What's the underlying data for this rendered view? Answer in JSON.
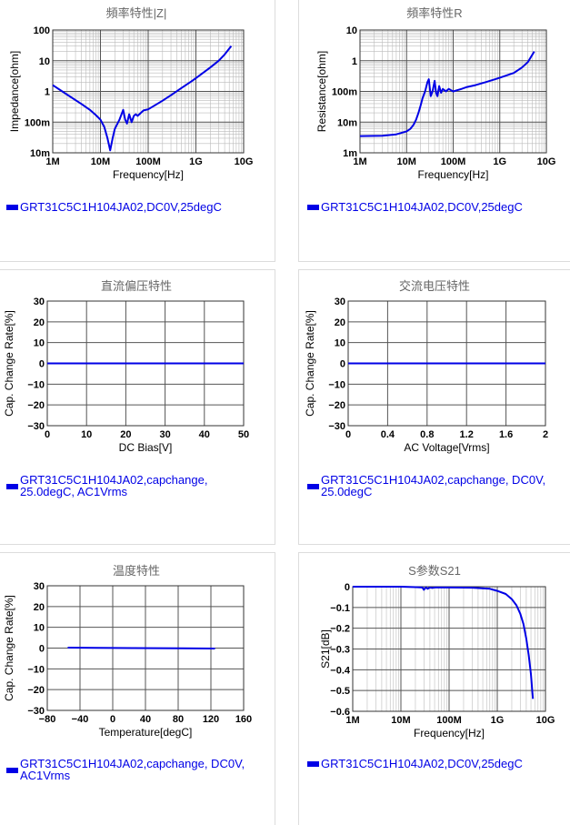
{
  "colors": {
    "line": "#0000e6",
    "grid": "#555555",
    "minor_grid": "#bbbbbb",
    "title": "#666666",
    "separator": "#dcdcdc"
  },
  "chart_data": [
    {
      "id": "impedance",
      "type": "line",
      "title": "頻率特性|Z|",
      "xlabel": "Frequency[Hz]",
      "ylabel": "Impedance[ohm]",
      "x_scale": "log",
      "y_scale": "log",
      "xlim": [
        1000000,
        10000000000
      ],
      "ylim": [
        0.01,
        100
      ],
      "x_ticks": [
        {
          "v": 1000000,
          "label": "1M"
        },
        {
          "v": 10000000,
          "label": "10M"
        },
        {
          "v": 100000000,
          "label": "100M"
        },
        {
          "v": 1000000000,
          "label": "1G"
        },
        {
          "v": 10000000000,
          "label": "10G"
        }
      ],
      "y_ticks": [
        {
          "v": 0.01,
          "label": "10m"
        },
        {
          "v": 0.1,
          "label": "100m"
        },
        {
          "v": 1,
          "label": "1"
        },
        {
          "v": 10,
          "label": "10"
        },
        {
          "v": 100,
          "label": "100"
        }
      ],
      "series": [
        {
          "name": "GRT31C5C1H104JA02,DC0V,25degC",
          "x": [
            1000000,
            2000000,
            4000000,
            6000000,
            8000000,
            10000000,
            12000000,
            14000000,
            16000000,
            18000000,
            20000000,
            25000000,
            30000000,
            33000000,
            36000000,
            40000000,
            45000000,
            50000000,
            55000000,
            60000000,
            70000000,
            80000000,
            100000000,
            150000000,
            200000000,
            300000000,
            500000000,
            800000000,
            1000000000,
            2000000000,
            3000000000,
            4000000000,
            5500000000
          ],
          "y": [
            1.6,
            0.79,
            0.39,
            0.25,
            0.17,
            0.12,
            0.07,
            0.03,
            0.012,
            0.03,
            0.06,
            0.12,
            0.25,
            0.12,
            0.09,
            0.18,
            0.1,
            0.16,
            0.18,
            0.16,
            0.2,
            0.24,
            0.26,
            0.38,
            0.5,
            0.75,
            1.3,
            2.1,
            2.7,
            6,
            10,
            16,
            30
          ]
        }
      ]
    },
    {
      "id": "resistance",
      "type": "line",
      "title": "頻率特性R",
      "xlabel": "Frequency[Hz]",
      "ylabel": "Resistance[ohm]",
      "x_scale": "log",
      "y_scale": "log",
      "xlim": [
        1000000,
        10000000000
      ],
      "ylim": [
        0.001,
        10
      ],
      "x_ticks": [
        {
          "v": 1000000,
          "label": "1M"
        },
        {
          "v": 10000000,
          "label": "10M"
        },
        {
          "v": 100000000,
          "label": "100M"
        },
        {
          "v": 1000000000,
          "label": "1G"
        },
        {
          "v": 10000000000,
          "label": "10G"
        }
      ],
      "y_ticks": [
        {
          "v": 0.001,
          "label": "1m"
        },
        {
          "v": 0.01,
          "label": "10m"
        },
        {
          "v": 0.1,
          "label": "100m"
        },
        {
          "v": 1,
          "label": "1"
        },
        {
          "v": 10,
          "label": "10"
        }
      ],
      "series": [
        {
          "name": "GRT31C5C1H104JA02,DC0V,25degC",
          "x": [
            1000000,
            3000000,
            6000000,
            10000000,
            12000000,
            14000000,
            16000000,
            18000000,
            20000000,
            22000000,
            25000000,
            28000000,
            30000000,
            33000000,
            36000000,
            40000000,
            43000000,
            46000000,
            50000000,
            55000000,
            60000000,
            70000000,
            80000000,
            100000000,
            150000000,
            200000000,
            300000000,
            500000000,
            800000000,
            1000000000,
            2000000000,
            3000000000,
            4000000000,
            5500000000
          ],
          "y": [
            0.0035,
            0.0036,
            0.004,
            0.005,
            0.006,
            0.008,
            0.012,
            0.02,
            0.035,
            0.06,
            0.1,
            0.2,
            0.25,
            0.07,
            0.1,
            0.22,
            0.09,
            0.07,
            0.15,
            0.09,
            0.12,
            0.1,
            0.12,
            0.1,
            0.12,
            0.14,
            0.16,
            0.2,
            0.25,
            0.28,
            0.4,
            0.6,
            0.9,
            2
          ]
        }
      ]
    },
    {
      "id": "dc_bias",
      "type": "line",
      "title": "直流偏压特性",
      "xlabel": "DC Bias[V]",
      "ylabel": "Cap. Change Rate[%]",
      "xlim": [
        0,
        50
      ],
      "ylim": [
        -30,
        30
      ],
      "x_ticks": [
        {
          "v": 0,
          "label": "0"
        },
        {
          "v": 10,
          "label": "10"
        },
        {
          "v": 20,
          "label": "20"
        },
        {
          "v": 30,
          "label": "30"
        },
        {
          "v": 40,
          "label": "40"
        },
        {
          "v": 50,
          "label": "50"
        }
      ],
      "y_ticks": [
        {
          "v": -30,
          "label": "−30"
        },
        {
          "v": -20,
          "label": "−20"
        },
        {
          "v": -10,
          "label": "−10"
        },
        {
          "v": 0,
          "label": "0"
        },
        {
          "v": 10,
          "label": "10"
        },
        {
          "v": 20,
          "label": "20"
        },
        {
          "v": 30,
          "label": "30"
        }
      ],
      "series": [
        {
          "name": "GRT31C5C1H104JA02,capchange,\n25.0degC, AC1Vrms",
          "x": [
            0,
            50
          ],
          "y": [
            0,
            0
          ]
        }
      ]
    },
    {
      "id": "ac_voltage",
      "type": "line",
      "title": "交流电压特性",
      "xlabel": "AC Voltage[Vrms]",
      "ylabel": "Cap. Change Rate[%]",
      "xlim": [
        0,
        2
      ],
      "ylim": [
        -30,
        30
      ],
      "x_ticks": [
        {
          "v": 0,
          "label": "0"
        },
        {
          "v": 0.4,
          "label": "0.4"
        },
        {
          "v": 0.8,
          "label": "0.8"
        },
        {
          "v": 1.2,
          "label": "1.2"
        },
        {
          "v": 1.6,
          "label": "1.6"
        },
        {
          "v": 2,
          "label": "2"
        }
      ],
      "y_ticks": [
        {
          "v": -30,
          "label": "−30"
        },
        {
          "v": -20,
          "label": "−20"
        },
        {
          "v": -10,
          "label": "−10"
        },
        {
          "v": 0,
          "label": "0"
        },
        {
          "v": 10,
          "label": "10"
        },
        {
          "v": 20,
          "label": "20"
        },
        {
          "v": 30,
          "label": "30"
        }
      ],
      "series": [
        {
          "name": "GRT31C5C1H104JA02,capchange, DC0V,\n25.0degC",
          "x": [
            0,
            2
          ],
          "y": [
            0,
            0
          ]
        }
      ]
    },
    {
      "id": "temperature",
      "type": "line",
      "title": "温度特性",
      "xlabel": "Temperature[degC]",
      "ylabel": "Cap. Change Rate[%]",
      "xlim": [
        -80,
        160
      ],
      "ylim": [
        -30,
        30
      ],
      "x_ticks": [
        {
          "v": -80,
          "label": "−80"
        },
        {
          "v": -40,
          "label": "−40"
        },
        {
          "v": 0,
          "label": "0"
        },
        {
          "v": 40,
          "label": "40"
        },
        {
          "v": 80,
          "label": "80"
        },
        {
          "v": 120,
          "label": "120"
        },
        {
          "v": 160,
          "label": "160"
        }
      ],
      "y_ticks": [
        {
          "v": -30,
          "label": "−30"
        },
        {
          "v": -20,
          "label": "−20"
        },
        {
          "v": -10,
          "label": "−10"
        },
        {
          "v": 0,
          "label": "0"
        },
        {
          "v": 10,
          "label": "10"
        },
        {
          "v": 20,
          "label": "20"
        },
        {
          "v": 30,
          "label": "30"
        }
      ],
      "series": [
        {
          "name": "GRT31C5C1H104JA02,capchange, DC0V,\nAC1Vrms",
          "x": [
            -55,
            -20,
            25,
            85,
            125
          ],
          "y": [
            0.2,
            0.1,
            0,
            -0.1,
            -0.2
          ]
        }
      ]
    },
    {
      "id": "s21",
      "type": "line",
      "title": "S参数S21",
      "xlabel": "Frequency[Hz]",
      "ylabel": "S21[dB]",
      "x_scale": "log",
      "xlim": [
        1000000,
        10000000000
      ],
      "ylim": [
        -0.6,
        0
      ],
      "x_ticks": [
        {
          "v": 1000000,
          "label": "1M"
        },
        {
          "v": 10000000,
          "label": "10M"
        },
        {
          "v": 100000000,
          "label": "100M"
        },
        {
          "v": 1000000000,
          "label": "1G"
        },
        {
          "v": 10000000000,
          "label": "10G"
        }
      ],
      "y_ticks": [
        {
          "v": 0,
          "label": "0"
        },
        {
          "v": -0.1,
          "label": "−0.1"
        },
        {
          "v": -0.2,
          "label": "−0.2"
        },
        {
          "v": -0.3,
          "label": "−0.3"
        },
        {
          "v": -0.4,
          "label": "−0.4"
        },
        {
          "v": -0.5,
          "label": "−0.5"
        },
        {
          "v": -0.6,
          "label": "−0.6"
        }
      ],
      "series": [
        {
          "name": "GRT31C5C1H104JA02,DC0V,25degC",
          "x": [
            1000000,
            10000000,
            20000000,
            28000000,
            30000000,
            33000000,
            36000000,
            40000000,
            45000000,
            50000000,
            100000000,
            300000000,
            700000000,
            1000000000,
            1500000000,
            2000000000,
            2500000000,
            3000000000,
            3500000000,
            4000000000,
            4500000000,
            5000000000,
            5500000000
          ],
          "y": [
            0,
            0,
            -0.002,
            -0.004,
            -0.015,
            -0.003,
            -0.01,
            -0.004,
            -0.006,
            -0.004,
            -0.004,
            -0.005,
            -0.01,
            -0.02,
            -0.035,
            -0.06,
            -0.09,
            -0.13,
            -0.18,
            -0.25,
            -0.33,
            -0.42,
            -0.54
          ]
        }
      ]
    }
  ]
}
